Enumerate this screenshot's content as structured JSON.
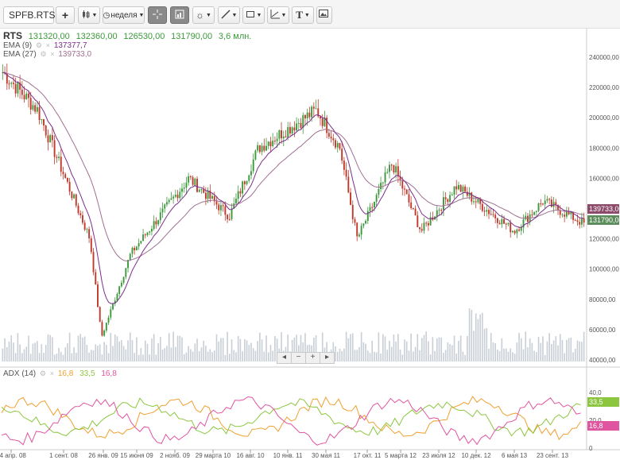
{
  "toolbar": {
    "symbol": "SPFB.RTS",
    "add": "+",
    "period": "неделя",
    "icons": [
      "plus-icon",
      "candles-icon",
      "clock-icon",
      "crosshair-icon",
      "volume-icon",
      "sun-icon",
      "line-draw-icon",
      "shape-icon",
      "axis-icon",
      "text-icon",
      "picture-icon"
    ]
  },
  "main": {
    "title": "RTS",
    "ohlc": [
      "131320,00",
      "132360,00",
      "126530,00",
      "131790,00",
      "3,6 млн."
    ],
    "ema9_label": "EMA (9)",
    "ema9_value": "137377,7",
    "ema27_label": "EMA (27)",
    "ema27_value": "139733,0",
    "price_tags": {
      "ema27": "139733,00",
      "close": "131790,00"
    },
    "colors": {
      "up": "#3c9a3c",
      "down": "#c0392b",
      "ema9": "#7b2e8c",
      "ema27": "#a07090",
      "close_tag": "#5b8c5b",
      "ema_tag": "#8c4a6a"
    }
  },
  "yaxis": [
    "240000,00",
    "220000,00",
    "200000,00",
    "180000,00",
    "160000,00",
    "140000,00",
    "120000,00",
    "100000,00",
    "80000,00",
    "60000,00",
    "40000,00"
  ],
  "adx": {
    "label": "ADX (14)",
    "v1": "16,8",
    "v2": "33,5",
    "v3": "16,8",
    "yaxis": [
      "40,0",
      "20,0",
      "0"
    ],
    "tag_green": "33,5",
    "tag_pink": "16,8",
    "colors": {
      "adx": "#c8a000",
      "pdi": "#8cc63f",
      "mdi": "#e055a0",
      "orange": "#f0a030"
    }
  },
  "xaxis": [
    "14 апр. 08",
    "1 сент. 08",
    "26 янв. 09",
    "15 июня 09",
    "2 нояб. 09",
    "29 марта 10",
    "16 авг. 10",
    "10 янв. 11",
    "30 мая 11",
    "17 окт. 11",
    "5 марта 12",
    "23 июля 12",
    "10 дек. 12",
    "6 мая 13",
    "23 сент. 13"
  ],
  "zoom": [
    "◂",
    "−",
    "+",
    "▸"
  ],
  "chart_data": {
    "type": "candlestick",
    "note_levels": [
      230000,
      205000,
      120000,
      55000,
      110000,
      160000,
      135000,
      180000,
      205000,
      180000,
      120000,
      170000,
      125000,
      155000,
      125000,
      145000,
      130000
    ]
  }
}
